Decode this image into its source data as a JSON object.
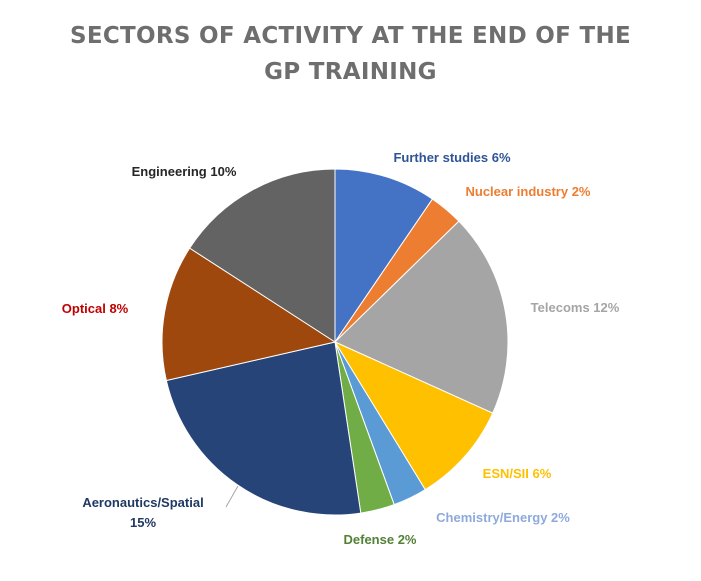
{
  "chart_data": {
    "type": "pie",
    "title": "SECTORS OF ACTIVITY AT THE END OF THE GP TRAINING",
    "slices": [
      {
        "label": "Further studies 6%",
        "value": 6,
        "color": "#4472c4",
        "label_color": "#2f5496"
      },
      {
        "label": "Nuclear industry 2%",
        "value": 2,
        "color": "#ed7d31",
        "label_color": "#ed7d31"
      },
      {
        "label": "Telecoms 12%",
        "value": 12,
        "color": "#a5a5a5",
        "label_color": "#a5a5a5"
      },
      {
        "label": "ESN/SII 6%",
        "value": 6,
        "color": "#ffc000",
        "label_color": "#ffc000"
      },
      {
        "label": "Chemistry/Energy 2%",
        "value": 2,
        "color": "#5b9bd5",
        "label_color": "#8eaadb"
      },
      {
        "label": "Defense 2%",
        "value": 2,
        "color": "#70ad47",
        "label_color": "#538135"
      },
      {
        "label": "Aeronautics/Spatial 15%",
        "label_lines": [
          "Aeronautics/Spatial",
          "15%"
        ],
        "value": 15,
        "color": "#264478",
        "label_color": "#1f3864"
      },
      {
        "label": "Optical 8%",
        "value": 8,
        "color": "#9e480e",
        "label_color": "#c00000"
      },
      {
        "label": "Engineering 10%",
        "value": 10,
        "color": "#636363",
        "label_color": "#262626"
      }
    ],
    "legend": "none"
  }
}
